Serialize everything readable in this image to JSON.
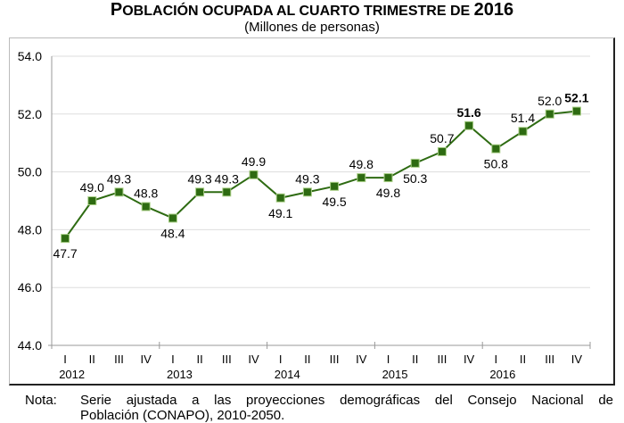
{
  "chart_data": {
    "type": "line",
    "title": "Población ocupada al cuarto trimestre de 2016",
    "title_main": "OBLACIÓN OCUPADA AL CUARTO TRIMESTRE DE ",
    "title_first": "P",
    "title_year": "2016",
    "subtitle": "(Millones de personas)",
    "xlabel": "",
    "ylabel": "",
    "ylim": [
      44.0,
      54.0
    ],
    "yticks": [
      "44.0",
      "46.0",
      "48.0",
      "50.0",
      "52.0",
      "54.0"
    ],
    "grid": true,
    "quarters": [
      "I",
      "II",
      "III",
      "IV",
      "I",
      "II",
      "III",
      "IV",
      "I",
      "II",
      "III",
      "IV",
      "I",
      "II",
      "III",
      "IV",
      "I",
      "II",
      "III",
      "IV"
    ],
    "years": [
      "2012",
      "2013",
      "2014",
      "2015",
      "2016"
    ],
    "series": [
      {
        "name": "Población ocupada",
        "color": "#2e6b12",
        "values": [
          47.7,
          49.0,
          49.3,
          48.8,
          48.4,
          49.3,
          49.3,
          49.9,
          49.1,
          49.3,
          49.5,
          49.8,
          49.8,
          50.3,
          50.7,
          51.6,
          50.8,
          51.4,
          52.0,
          52.1
        ],
        "labels": [
          "47.7",
          "49.0",
          "49.3",
          "48.8",
          "48.4",
          "49.3",
          "49.3",
          "49.9",
          "49.1",
          "49.3",
          "49.5",
          "49.8",
          "49.8",
          "50.3",
          "50.7",
          "51.6",
          "50.8",
          "51.4",
          "52.0",
          "52.1"
        ],
        "label_pos": [
          "below",
          "above",
          "above",
          "above",
          "below",
          "above",
          "above",
          "above",
          "below",
          "above",
          "below",
          "above",
          "below",
          "below",
          "above",
          "above",
          "below",
          "above",
          "above",
          "above"
        ],
        "bold": [
          15,
          19
        ]
      }
    ]
  },
  "note": {
    "label": "Nota:",
    "line1": "Serie ajustada a las proyecciones demográficas del Consejo Nacional de",
    "line2": "Población (CONAPO), 2010-2050."
  }
}
